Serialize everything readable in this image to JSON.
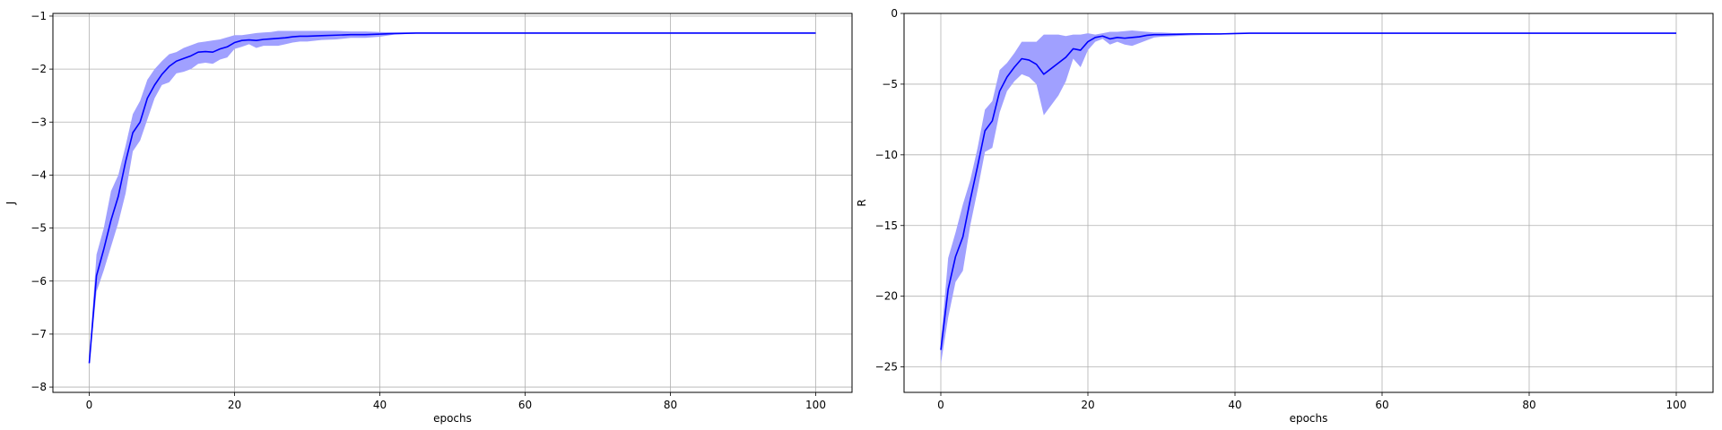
{
  "chart_data": [
    {
      "type": "line",
      "xlabel": "epochs",
      "ylabel": "J",
      "xlim": [
        -5,
        105
      ],
      "ylim": [
        -8.1,
        -0.95
      ],
      "xticks": [
        0,
        20,
        40,
        60,
        80,
        100
      ],
      "yticks": [
        -8,
        -7,
        -6,
        -5,
        -4,
        -3,
        -2,
        -1
      ],
      "grid": true,
      "line_color": "#0000ff",
      "band_color": "#a0a0ff",
      "x": [
        0,
        1,
        2,
        3,
        4,
        5,
        6,
        7,
        8,
        9,
        10,
        11,
        12,
        13,
        14,
        15,
        16,
        17,
        18,
        19,
        20,
        21,
        22,
        23,
        24,
        25,
        26,
        27,
        28,
        29,
        30,
        32,
        34,
        36,
        38,
        40,
        42,
        45,
        50,
        60,
        70,
        80,
        90,
        100
      ],
      "mean": [
        -7.55,
        -5.9,
        -5.4,
        -4.85,
        -4.4,
        -3.75,
        -3.2,
        -3.0,
        -2.55,
        -2.3,
        -2.1,
        -1.95,
        -1.85,
        -1.8,
        -1.75,
        -1.68,
        -1.67,
        -1.68,
        -1.62,
        -1.58,
        -1.5,
        -1.46,
        -1.45,
        -1.46,
        -1.44,
        -1.43,
        -1.42,
        -1.41,
        -1.39,
        -1.38,
        -1.38,
        -1.37,
        -1.36,
        -1.35,
        -1.35,
        -1.34,
        -1.33,
        -1.32,
        -1.32,
        -1.32,
        -1.32,
        -1.32,
        -1.32,
        -1.32
      ],
      "upper": [
        -7.45,
        -5.5,
        -5.0,
        -4.3,
        -4.0,
        -3.45,
        -2.85,
        -2.6,
        -2.2,
        -2.0,
        -1.85,
        -1.72,
        -1.68,
        -1.6,
        -1.55,
        -1.5,
        -1.48,
        -1.46,
        -1.44,
        -1.4,
        -1.36,
        -1.36,
        -1.34,
        -1.32,
        -1.31,
        -1.3,
        -1.28,
        -1.28,
        -1.28,
        -1.28,
        -1.28,
        -1.28,
        -1.28,
        -1.29,
        -1.29,
        -1.3,
        -1.31,
        -1.31,
        -1.31,
        -1.31,
        -1.31,
        -1.31,
        -1.31,
        -1.31
      ],
      "lower": [
        -7.6,
        -6.2,
        -5.8,
        -5.35,
        -4.9,
        -4.35,
        -3.55,
        -3.35,
        -2.95,
        -2.55,
        -2.3,
        -2.25,
        -2.08,
        -2.05,
        -2.0,
        -1.9,
        -1.88,
        -1.9,
        -1.82,
        -1.78,
        -1.62,
        -1.58,
        -1.53,
        -1.6,
        -1.56,
        -1.56,
        -1.56,
        -1.53,
        -1.5,
        -1.48,
        -1.48,
        -1.45,
        -1.44,
        -1.41,
        -1.41,
        -1.39,
        -1.35,
        -1.33,
        -1.33,
        -1.33,
        -1.33,
        -1.33,
        -1.33,
        -1.33
      ]
    },
    {
      "type": "line",
      "xlabel": "epochs",
      "ylabel": "R",
      "xlim": [
        -5,
        105
      ],
      "ylim": [
        -26.8,
        0
      ],
      "xticks": [
        0,
        20,
        40,
        60,
        80,
        100
      ],
      "yticks": [
        0,
        -5,
        -10,
        -15,
        -20,
        -25
      ],
      "grid": true,
      "line_color": "#0000ff",
      "band_color": "#a0a0ff",
      "x": [
        0,
        1,
        2,
        3,
        4,
        5,
        6,
        7,
        8,
        9,
        10,
        11,
        12,
        13,
        14,
        15,
        16,
        17,
        18,
        19,
        20,
        21,
        22,
        23,
        24,
        25,
        26,
        27,
        28,
        29,
        30,
        32,
        34,
        36,
        38,
        40,
        42,
        45,
        50,
        60,
        70,
        80,
        90,
        100
      ],
      "mean": [
        -23.8,
        -19.5,
        -17.2,
        -15.8,
        -13.2,
        -10.8,
        -8.3,
        -7.6,
        -5.5,
        -4.5,
        -3.8,
        -3.2,
        -3.3,
        -3.6,
        -4.3,
        -3.9,
        -3.5,
        -3.1,
        -2.5,
        -2.6,
        -2.0,
        -1.7,
        -1.6,
        -1.8,
        -1.7,
        -1.75,
        -1.7,
        -1.65,
        -1.55,
        -1.5,
        -1.5,
        -1.48,
        -1.45,
        -1.45,
        -1.45,
        -1.42,
        -1.4,
        -1.4,
        -1.4,
        -1.4,
        -1.4,
        -1.4,
        -1.4,
        -1.4
      ],
      "upper": [
        -23.3,
        -17.3,
        -15.5,
        -13.5,
        -11.8,
        -9.5,
        -6.8,
        -6.2,
        -4.0,
        -3.5,
        -2.8,
        -2.0,
        -2.0,
        -2.0,
        -1.5,
        -1.5,
        -1.5,
        -1.6,
        -1.5,
        -1.5,
        -1.4,
        -1.5,
        -1.4,
        -1.3,
        -1.3,
        -1.25,
        -1.2,
        -1.25,
        -1.3,
        -1.35,
        -1.35,
        -1.4,
        -1.4,
        -1.4,
        -1.4,
        -1.4,
        -1.4,
        -1.4,
        -1.4,
        -1.4,
        -1.4,
        -1.4,
        -1.4,
        -1.4
      ],
      "lower": [
        -24.8,
        -21.5,
        -19.0,
        -18.2,
        -15.0,
        -12.5,
        -9.8,
        -9.5,
        -7.0,
        -5.5,
        -4.8,
        -4.3,
        -4.5,
        -5.0,
        -7.2,
        -6.5,
        -5.8,
        -4.8,
        -3.2,
        -3.8,
        -2.6,
        -2.0,
        -1.8,
        -2.2,
        -2.0,
        -2.2,
        -2.3,
        -2.1,
        -1.9,
        -1.7,
        -1.65,
        -1.6,
        -1.55,
        -1.52,
        -1.5,
        -1.46,
        -1.42,
        -1.42,
        -1.42,
        -1.42,
        -1.42,
        -1.42,
        -1.42,
        -1.42
      ]
    }
  ]
}
